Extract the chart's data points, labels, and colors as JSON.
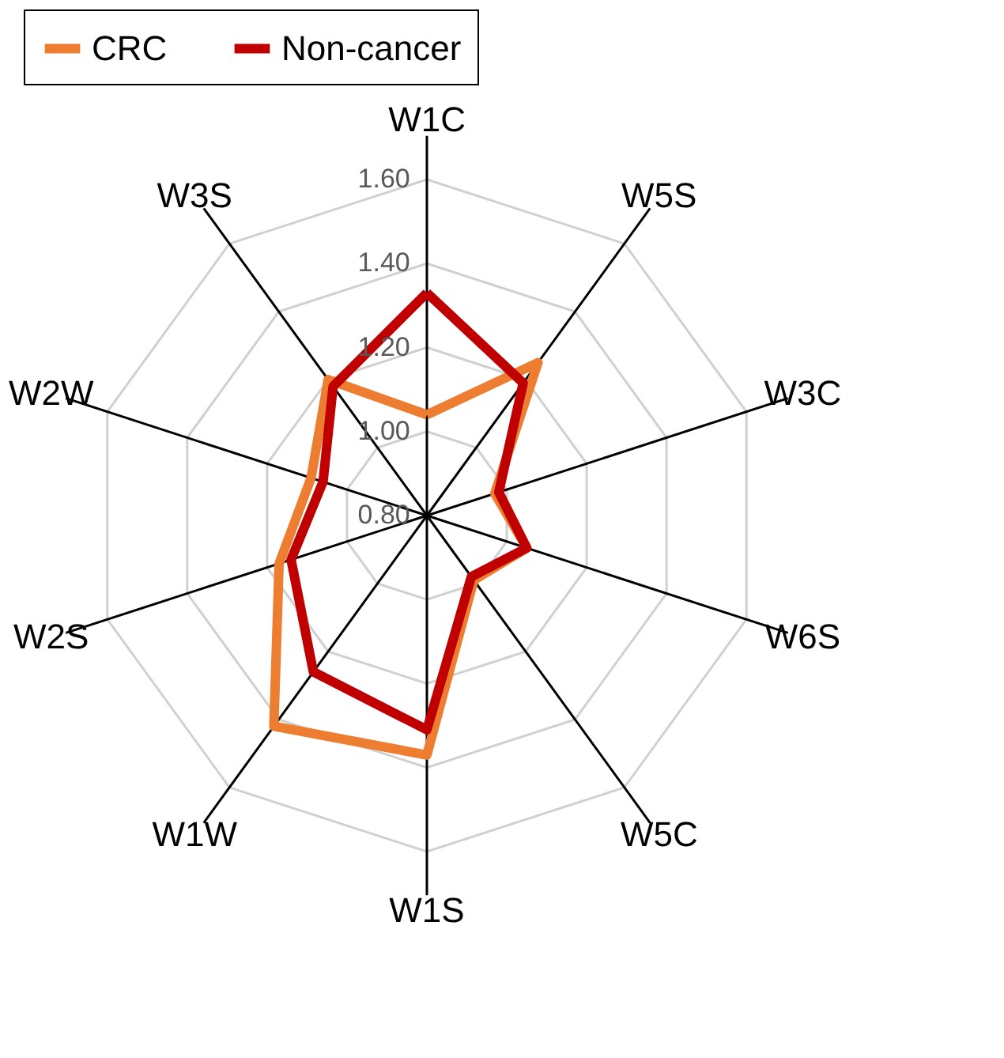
{
  "chart_data": {
    "type": "radar",
    "categories": [
      "W1C",
      "W5S",
      "W3C",
      "W6S",
      "W5C",
      "W1S",
      "W1W",
      "W2S",
      "W2W",
      "W3S"
    ],
    "series": [
      {
        "name": "CRC",
        "color": "#ed7d31",
        "values": [
          1.04,
          1.25,
          0.97,
          1.05,
          0.99,
          1.37,
          1.42,
          1.17,
          1.09,
          1.2
        ]
      },
      {
        "name": "Non-cancer",
        "color": "#c00000",
        "values": [
          1.33,
          1.19,
          0.98,
          1.05,
          0.98,
          1.31,
          1.26,
          1.14,
          1.06,
          1.18
        ]
      }
    ],
    "ylim": [
      0.8,
      1.6
    ],
    "yticks": [
      {
        "value": 0.8,
        "label": "0.80"
      },
      {
        "value": 1.0,
        "label": "1.00"
      },
      {
        "value": 1.2,
        "label": "1.20"
      },
      {
        "value": 1.4,
        "label": "1.40"
      },
      {
        "value": 1.6,
        "label": "1.60"
      }
    ],
    "grid": true,
    "legend": "top"
  }
}
